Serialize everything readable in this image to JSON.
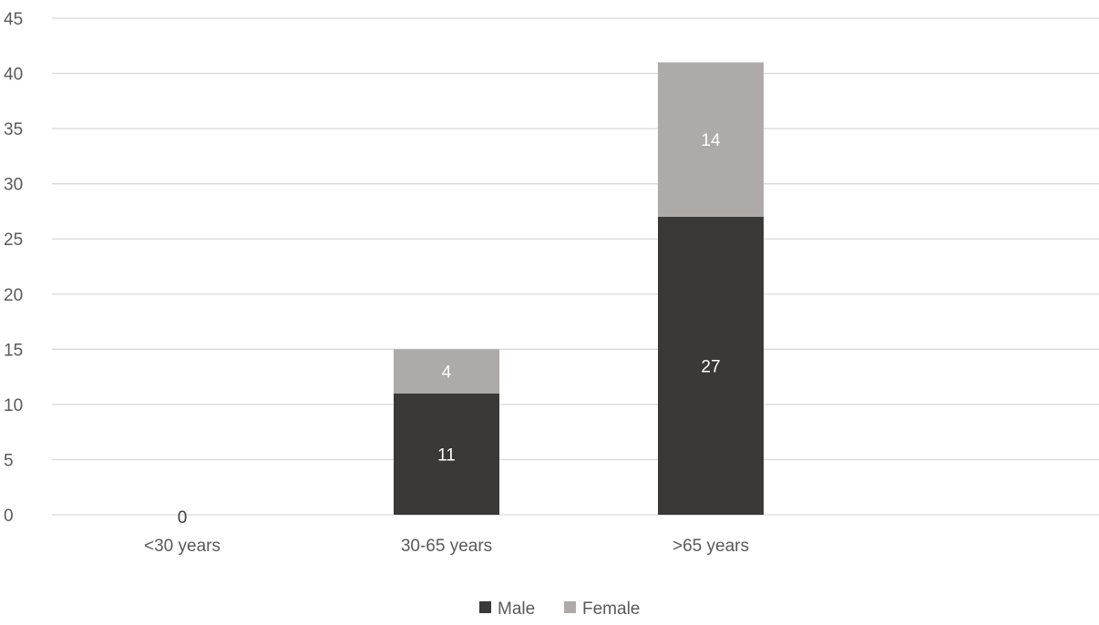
{
  "chart_data": {
    "type": "bar",
    "stacked": true,
    "categories": [
      "<30 years",
      "30-65 years",
      ">65 years"
    ],
    "series": [
      {
        "name": "Male",
        "values": [
          0,
          11,
          27
        ],
        "color": "#3a3937",
        "label_color": "#ffffff"
      },
      {
        "name": "Female",
        "values": [
          0,
          4,
          14
        ],
        "color": "#aeaaa8",
        "label_color": "#ffffff"
      }
    ],
    "ylim": [
      0,
      45
    ],
    "yticks": [
      0,
      5,
      10,
      15,
      20,
      25,
      30,
      35,
      40,
      45
    ],
    "grid": true,
    "legend": "bottom-center",
    "zero_label": "0",
    "colors": {
      "grid": "#d9d9d9",
      "text": "#595959"
    }
  }
}
